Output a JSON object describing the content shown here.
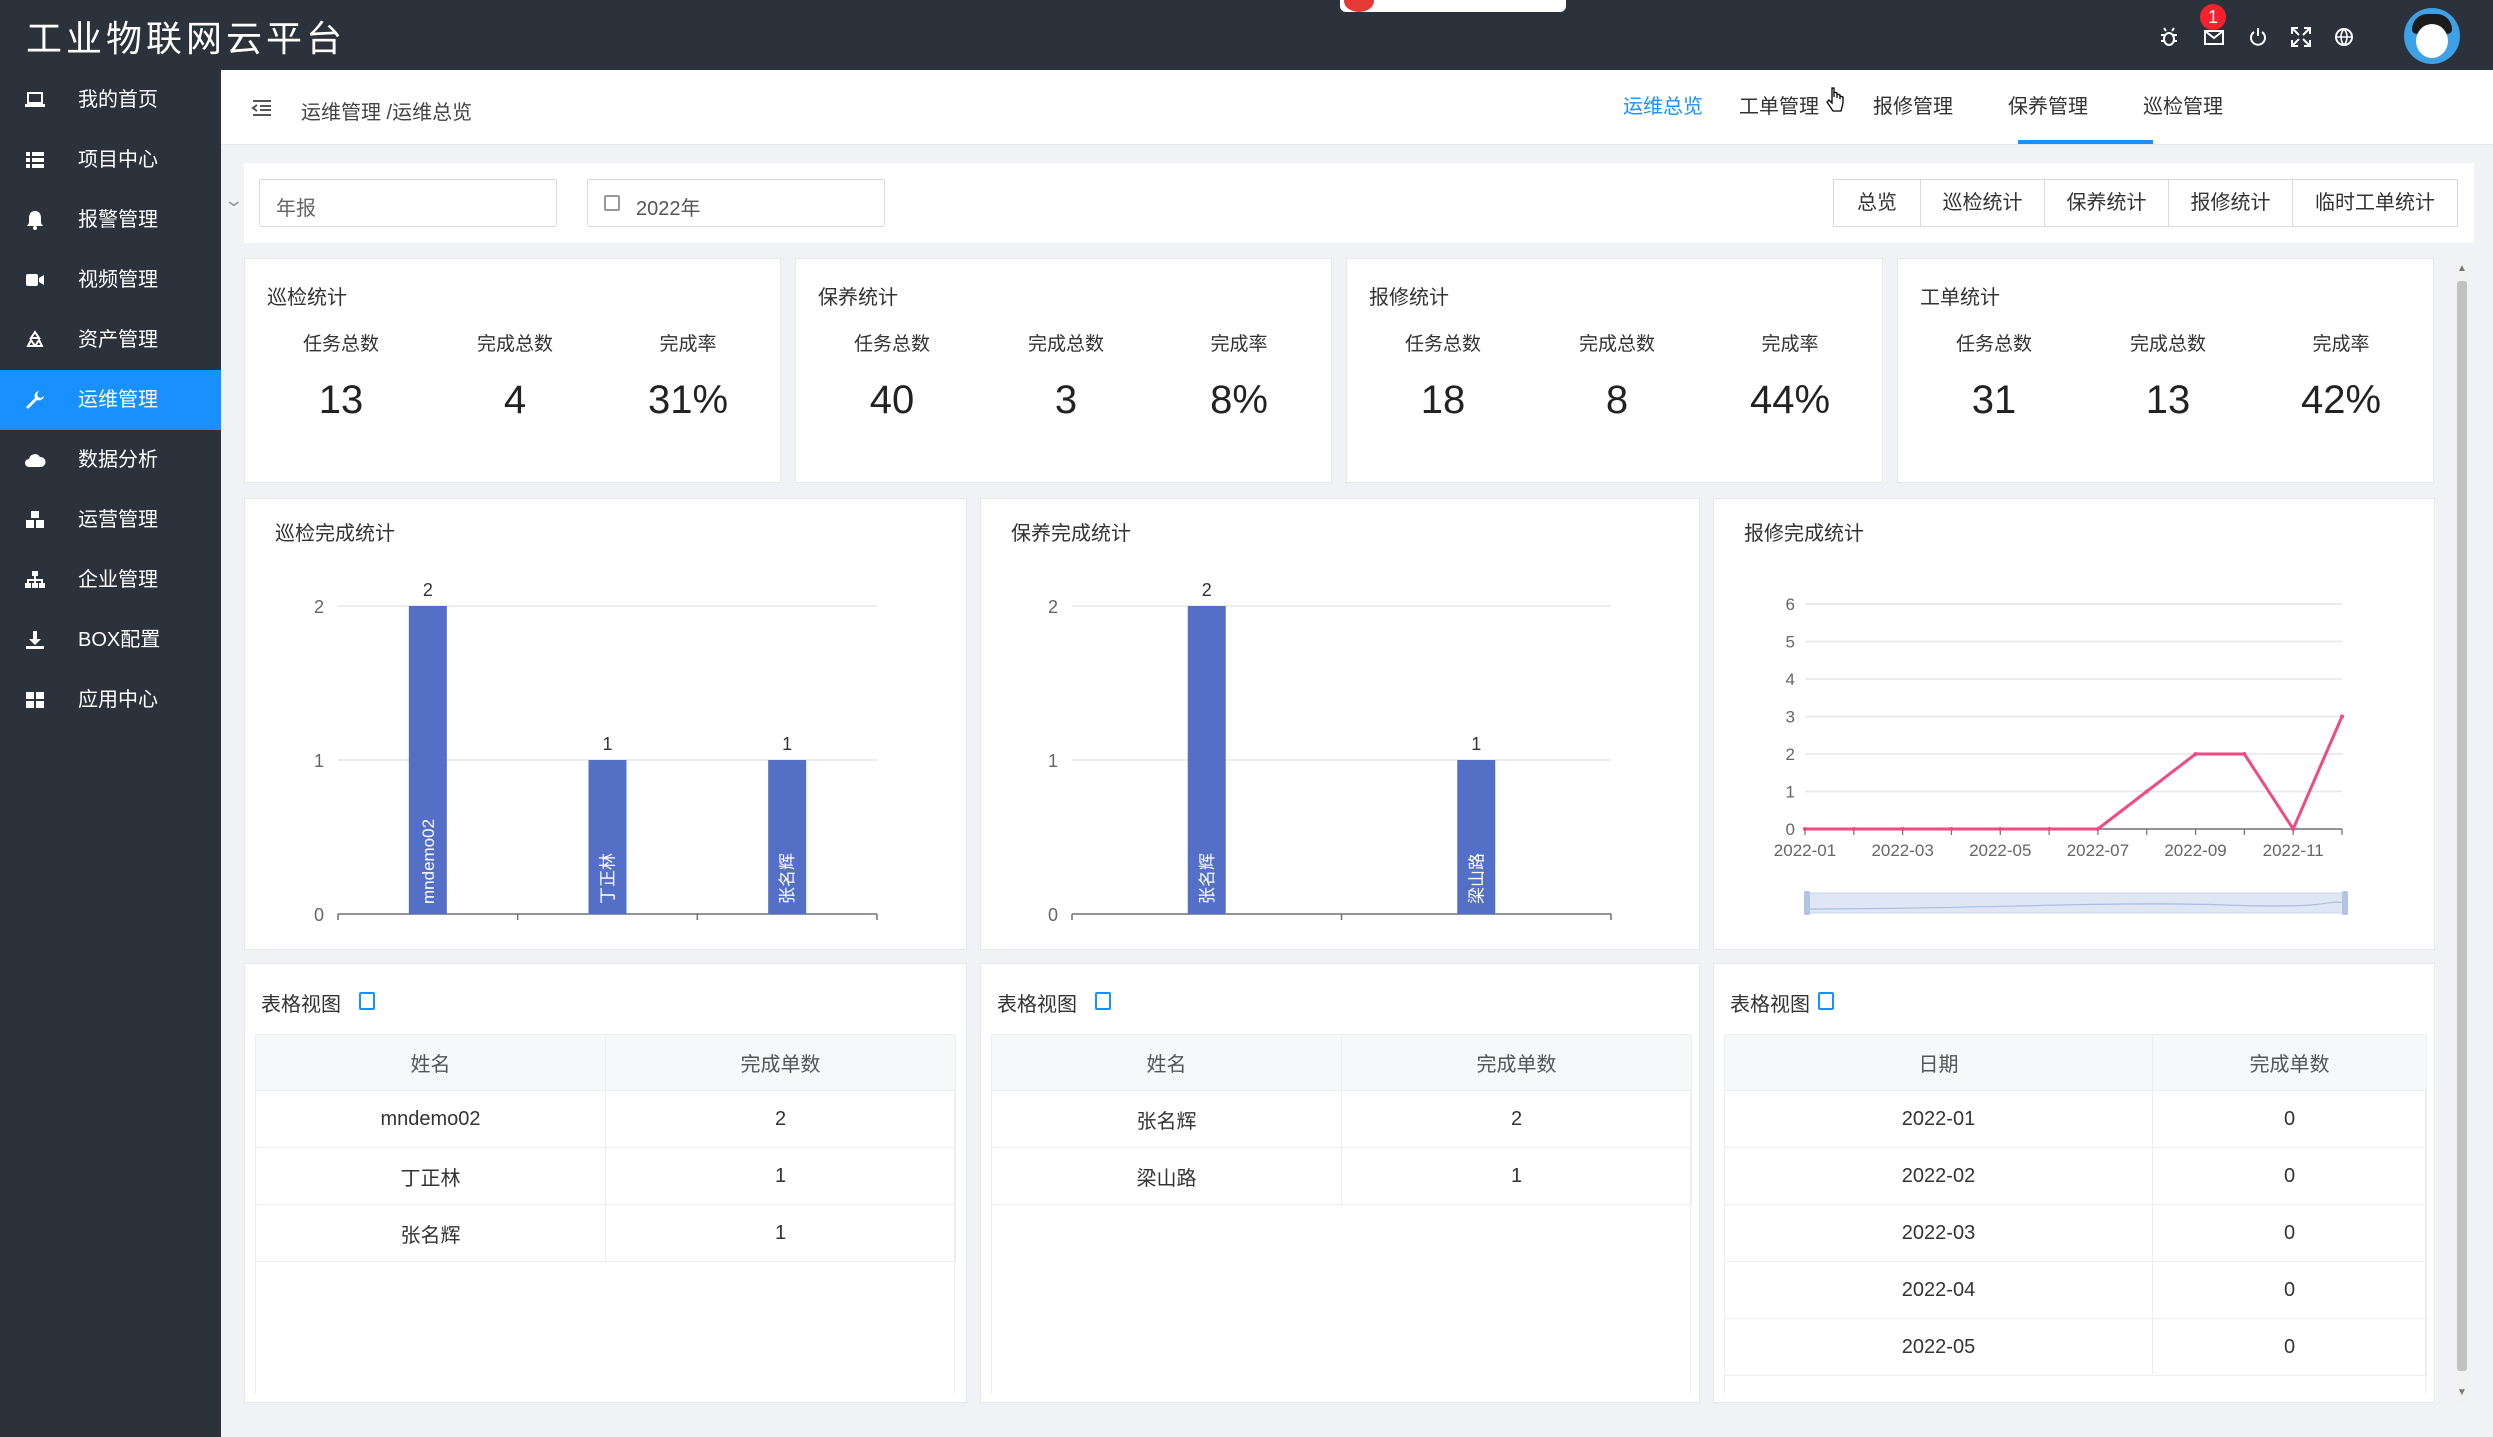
{
  "app": {
    "title": "工业物联网云平台",
    "notification_count": "1"
  },
  "topbar_icons": [
    "bug-icon",
    "mail-icon",
    "power-icon",
    "fullscreen-icon",
    "globe-icon"
  ],
  "sidebar": {
    "active_color": "#1890ff",
    "items": [
      {
        "label": "我的首页",
        "icon": "laptop-icon"
      },
      {
        "label": "项目中心",
        "icon": "list-icon"
      },
      {
        "label": "报警管理",
        "icon": "bell-icon"
      },
      {
        "label": "视频管理",
        "icon": "video-icon"
      },
      {
        "label": "资产管理",
        "icon": "recycle-icon"
      },
      {
        "label": "运维管理",
        "icon": "wrench-icon",
        "active": true
      },
      {
        "label": "数据分析",
        "icon": "cloud-chart-icon"
      },
      {
        "label": "运营管理",
        "icon": "cubes-icon"
      },
      {
        "label": "企业管理",
        "icon": "sitemap-icon"
      },
      {
        "label": "BOX配置",
        "icon": "download-icon"
      },
      {
        "label": "应用中心",
        "icon": "grid-icon"
      }
    ]
  },
  "header": {
    "breadcrumb": "运维管理 /运维总览",
    "tabs": [
      "运维总览",
      "工单管理",
      "报修管理",
      "保养管理",
      "巡检管理"
    ],
    "active_tab": "运维总览"
  },
  "filters": {
    "period": "年报",
    "year": "2022年",
    "buttons": [
      "总览",
      "巡检统计",
      "保养统计",
      "报修统计",
      "临时工单统计"
    ]
  },
  "stats": [
    {
      "title": "巡检统计",
      "labels": [
        "任务总数",
        "完成总数",
        "完成率"
      ],
      "values": [
        "13",
        "4",
        "31%"
      ]
    },
    {
      "title": "保养统计",
      "labels": [
        "任务总数",
        "完成总数",
        "完成率"
      ],
      "values": [
        "40",
        "3",
        "8%"
      ]
    },
    {
      "title": "报修统计",
      "labels": [
        "任务总数",
        "完成总数",
        "完成率"
      ],
      "values": [
        "18",
        "8",
        "44%"
      ]
    },
    {
      "title": "工单统计",
      "labels": [
        "任务总数",
        "完成总数",
        "完成率"
      ],
      "values": [
        "31",
        "13",
        "42%"
      ]
    }
  ],
  "chart_panels": {
    "inspection_title": "巡检完成统计",
    "maintenance_title": "保养完成统计",
    "repair_title": "报修完成统计"
  },
  "chart_data": [
    {
      "type": "bar",
      "title": "巡检完成统计",
      "categories": [
        "mndemo02",
        "丁正林",
        "张名辉"
      ],
      "values": [
        2,
        1,
        1
      ],
      "ylim": [
        0,
        2
      ],
      "yticks": [
        0,
        1,
        2
      ],
      "color": "#5470c6"
    },
    {
      "type": "bar",
      "title": "保养完成统计",
      "categories": [
        "张名辉",
        "梁山路"
      ],
      "values": [
        2,
        1
      ],
      "ylim": [
        0,
        2
      ],
      "yticks": [
        0,
        1,
        2
      ],
      "color": "#5470c6"
    },
    {
      "type": "line",
      "title": "报修完成统计",
      "x": [
        "2022-01",
        "2022-02",
        "2022-03",
        "2022-04",
        "2022-05",
        "2022-06",
        "2022-07",
        "2022-08",
        "2022-09",
        "2022-10",
        "2022-11",
        "2022-12"
      ],
      "xtick_labels": [
        "2022-01",
        "2022-03",
        "2022-05",
        "2022-07",
        "2022-09",
        "2022-11"
      ],
      "values": [
        0,
        0,
        0,
        0,
        0,
        0,
        0,
        1,
        2,
        2,
        0,
        3
      ],
      "ylim": [
        0,
        6
      ],
      "yticks": [
        0,
        1,
        2,
        3,
        4,
        5,
        6
      ],
      "color": "#ee4b82"
    }
  ],
  "tables": [
    {
      "title": "表格视图",
      "columns": [
        "姓名",
        "完成单数"
      ],
      "rows": [
        [
          "mndemo02",
          "2"
        ],
        [
          "丁正林",
          "1"
        ],
        [
          "张名辉",
          "1"
        ]
      ]
    },
    {
      "title": "表格视图",
      "columns": [
        "姓名",
        "完成单数"
      ],
      "rows": [
        [
          "张名辉",
          "2"
        ],
        [
          "梁山路",
          "1"
        ]
      ]
    },
    {
      "title": "表格视图",
      "columns": [
        "日期",
        "完成单数"
      ],
      "rows": [
        [
          "2022-01",
          "0"
        ],
        [
          "2022-02",
          "0"
        ],
        [
          "2022-03",
          "0"
        ],
        [
          "2022-04",
          "0"
        ],
        [
          "2022-05",
          "0"
        ]
      ]
    }
  ]
}
